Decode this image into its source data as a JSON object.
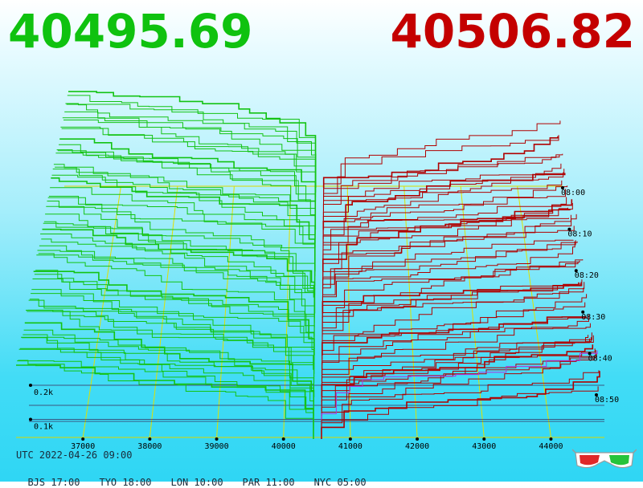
{
  "prices": {
    "bid": "40495.69",
    "ask": "40506.82",
    "bid_color": "#0fc20f",
    "ask_color": "#c40000"
  },
  "footer": {
    "utc": "UTC 2022-04-26 09:00",
    "timezones": [
      "BJS 17:00",
      "TYO 18:00",
      "LON 10:00",
      "PAR 11:00",
      "NYC 05:00"
    ]
  },
  "chart_data": {
    "type": "area",
    "x_ticks": [
      "37000",
      "38000",
      "39000",
      "40000",
      "41000",
      "42000",
      "43000",
      "44000"
    ],
    "x_tick_values": [
      37000,
      38000,
      39000,
      40000,
      41000,
      42000,
      43000,
      44000
    ],
    "xlim": [
      36000,
      44800
    ],
    "depth_ticks": [
      "0.1k",
      "0.2k"
    ],
    "depth_tick_values": [
      100,
      200
    ],
    "time_ticks": [
      "08:00",
      "08:10",
      "08:20",
      "08:30",
      "08:40",
      "08:50"
    ],
    "time_range": [
      "08:00",
      "09:00"
    ],
    "series": [
      {
        "name": "bids",
        "color": "#13c313",
        "side": "bid"
      },
      {
        "name": "asks",
        "color": "#b00000",
        "side": "ask"
      }
    ],
    "best_bid": 40495.69,
    "best_ask": 40506.82,
    "grid": true,
    "icon": "3d-glasses-icon"
  }
}
